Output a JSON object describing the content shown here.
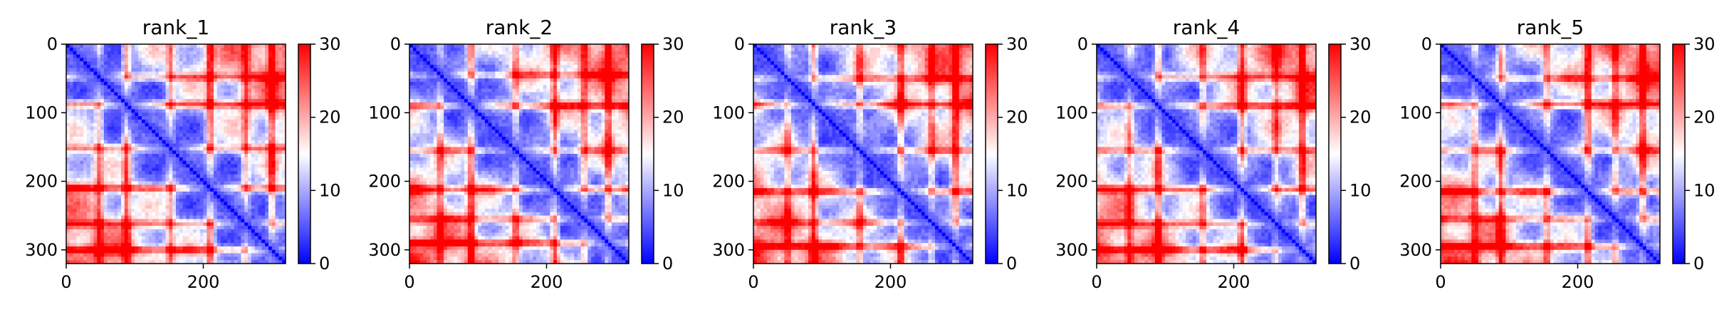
{
  "chart_data": [
    {
      "type": "heatmap",
      "title": "rank_1",
      "x_ticks": [
        0,
        200
      ],
      "y_ticks": [
        0,
        100,
        200,
        300
      ],
      "xlim": [
        0,
        320
      ],
      "ylim": [
        320,
        0
      ],
      "colorbar": {
        "min": 0,
        "max": 30,
        "ticks": [
          0,
          10,
          20,
          30
        ],
        "colors": [
          "#0000ff",
          "#ffffff",
          "#ff0000"
        ]
      },
      "bands": [
        48,
        88,
        152,
        210,
        262,
        300
      ],
      "seed": 1
    },
    {
      "type": "heatmap",
      "title": "rank_2",
      "x_ticks": [
        0,
        200
      ],
      "y_ticks": [
        0,
        100,
        200,
        300
      ],
      "xlim": [
        0,
        320
      ],
      "ylim": [
        320,
        0
      ],
      "colorbar": {
        "min": 0,
        "max": 30,
        "ticks": [
          0,
          10,
          20,
          30
        ],
        "colors": [
          "#0000ff",
          "#ffffff",
          "#ff0000"
        ]
      },
      "bands": [
        45,
        90,
        155,
        212,
        255,
        290
      ],
      "seed": 2
    },
    {
      "type": "heatmap",
      "title": "rank_3",
      "x_ticks": [
        0,
        200
      ],
      "y_ticks": [
        0,
        100,
        200,
        300
      ],
      "xlim": [
        0,
        320
      ],
      "ylim": [
        320,
        0
      ],
      "colorbar": {
        "min": 0,
        "max": 30,
        "ticks": [
          0,
          10,
          20,
          30
        ],
        "colors": [
          "#0000ff",
          "#ffffff",
          "#ff0000"
        ]
      },
      "bands": [
        50,
        88,
        155,
        215,
        260,
        295
      ],
      "seed": 3
    },
    {
      "type": "heatmap",
      "title": "rank_4",
      "x_ticks": [
        0,
        200
      ],
      "y_ticks": [
        0,
        100,
        200,
        300
      ],
      "xlim": [
        0,
        320
      ],
      "ylim": [
        320,
        0
      ],
      "colorbar": {
        "min": 0,
        "max": 30,
        "ticks": [
          0,
          10,
          20,
          30
        ],
        "colors": [
          "#0000ff",
          "#ffffff",
          "#ff0000"
        ]
      },
      "bands": [
        48,
        90,
        155,
        212,
        262,
        300
      ],
      "seed": 4
    },
    {
      "type": "heatmap",
      "title": "rank_5",
      "x_ticks": [
        0,
        200
      ],
      "y_ticks": [
        0,
        100,
        200,
        300
      ],
      "xlim": [
        0,
        320
      ],
      "ylim": [
        320,
        0
      ],
      "colorbar": {
        "min": 0,
        "max": 30,
        "ticks": [
          0,
          10,
          20,
          30
        ],
        "colors": [
          "#0000ff",
          "#ffffff",
          "#ff0000"
        ]
      },
      "bands": [
        50,
        88,
        155,
        215,
        255,
        295
      ],
      "seed": 5
    }
  ]
}
